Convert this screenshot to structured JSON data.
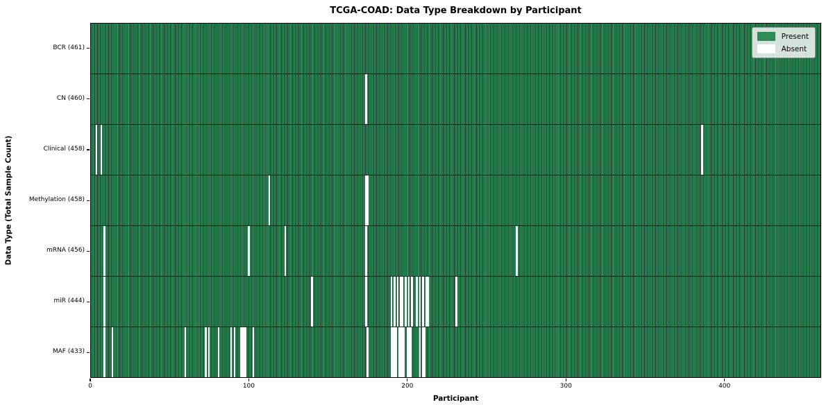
{
  "title": "TCGA-COAD: Data Type Breakdown by Participant",
  "chart_data": {
    "type": "heatmap",
    "title": "TCGA-COAD: Data Type Breakdown by Participant",
    "xlabel": "Participant",
    "ylabel": "Data Type (Total Sample Count)",
    "n_participants": 461,
    "x_ticks": [
      0,
      100,
      200,
      300,
      400
    ],
    "xlim": [
      0,
      461
    ],
    "grid": false,
    "legend_position": "upper right",
    "legend": [
      {
        "label": "Present",
        "color": "#2e8b57"
      },
      {
        "label": "Absent",
        "color": "#ffffff"
      }
    ],
    "colors": {
      "present": "#2e8b57",
      "absent": "#ffffff",
      "bar_edge": "#0e3a24",
      "row_separator": "#143823",
      "axis": "#000000",
      "legend_bg": "#e9efe7",
      "legend_border": "#8f8f8f"
    },
    "rows": [
      {
        "data_type": "BCR",
        "label": "BCR (461)",
        "present_count": 461,
        "absent_participants": []
      },
      {
        "data_type": "CN",
        "label": "CN (460)",
        "present_count": 460,
        "absent_participants": [
          173
        ]
      },
      {
        "data_type": "Clinical",
        "label": "Clinical (458)",
        "present_count": 458,
        "absent_participants": [
          3,
          6,
          385
        ]
      },
      {
        "data_type": "Methylation",
        "label": "Methylation (458)",
        "present_count": 458,
        "absent_participants": [
          112,
          173,
          174
        ]
      },
      {
        "data_type": "mRNA",
        "label": "mRNA (456)",
        "present_count": 456,
        "absent_participants": [
          8,
          99,
          122,
          173,
          268
        ]
      },
      {
        "data_type": "miR",
        "label": "miR (444)",
        "present_count": 444,
        "absent_participants": [
          8,
          139,
          173,
          189,
          191,
          193,
          195,
          196,
          198,
          200,
          202,
          205,
          207,
          209,
          211,
          212,
          230
        ]
      },
      {
        "data_type": "MAF",
        "label": "MAF (433)",
        "present_count": 433,
        "absent_participants": [
          8,
          13,
          59,
          72,
          74,
          80,
          88,
          90,
          94,
          95,
          96,
          97,
          102,
          174,
          189,
          190,
          191,
          192,
          194,
          195,
          196,
          197,
          199,
          200,
          201,
          207,
          209,
          210
        ]
      }
    ]
  }
}
